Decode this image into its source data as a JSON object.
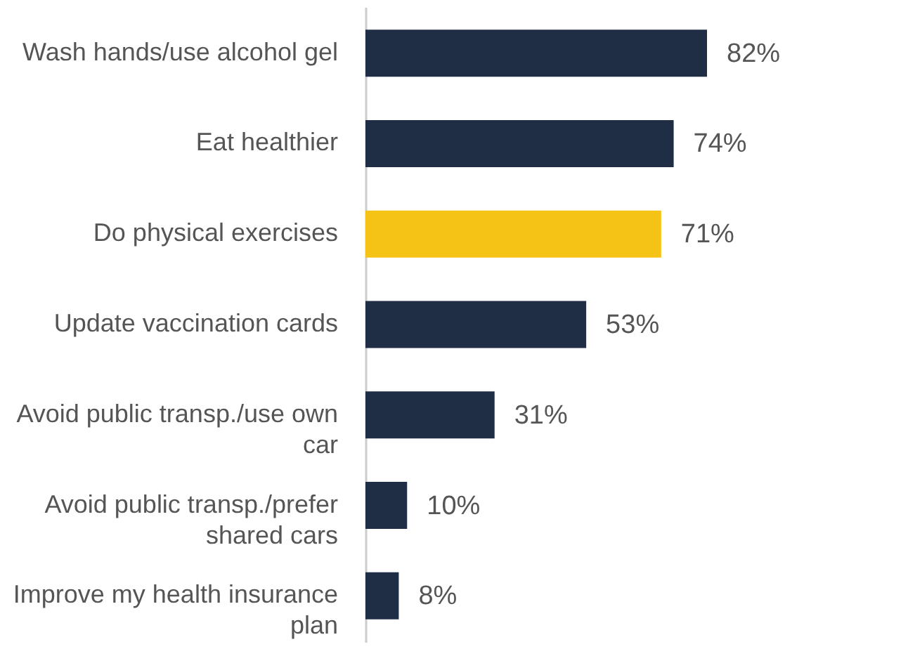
{
  "chart_data": {
    "type": "bar",
    "orientation": "horizontal",
    "categories": [
      "Wash hands/use alcohol gel",
      "Eat healthier",
      "Do physical exercises",
      "Update vaccination cards",
      "Avoid public transp./use own car",
      "Avoid public transp./prefer shared cars",
      "Improve my health insurance plan"
    ],
    "values": [
      82,
      74,
      71,
      53,
      31,
      10,
      8
    ],
    "colors": [
      "#1f2d45",
      "#1f2d45",
      "#f5c216",
      "#1f2d45",
      "#1f2d45",
      "#1f2d45",
      "#1f2d45"
    ],
    "value_labels": [
      "82%",
      "74%",
      "71%",
      "53%",
      "31%",
      "10%",
      "8%"
    ]
  }
}
